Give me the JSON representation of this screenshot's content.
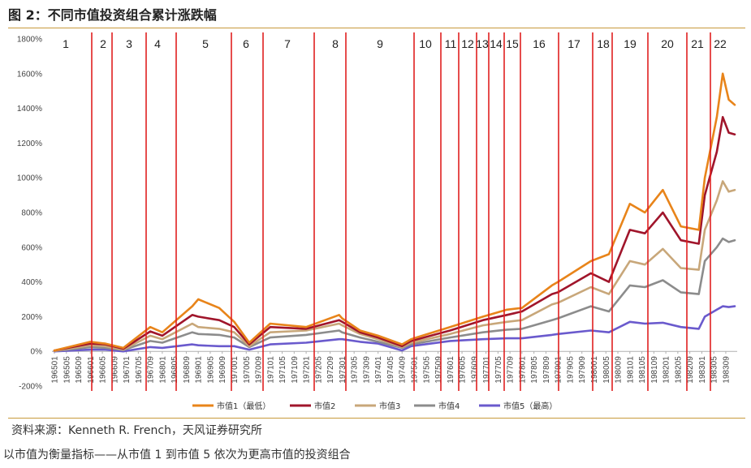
{
  "header": {
    "title": "图 2：不同市值投资组合累计涨跌幅"
  },
  "footer": {
    "source": "资料来源：Kenneth R. French，天风证券研究所",
    "note": "以市值为衡量指标——从市值 1 到市值 5 依次为更高市值的投资组合"
  },
  "colors": {
    "s1": "#e8841a",
    "s2": "#a0152b",
    "s3": "#c8a77a",
    "s4": "#8c8c8c",
    "s5": "#6a5acd",
    "divider": "#e02020",
    "axis": "#b0b0b0"
  },
  "chart_data": {
    "type": "line",
    "xlabel": "",
    "ylabel": "",
    "ylim": [
      -200,
      1800
    ],
    "yticks": [
      -200,
      0,
      200,
      400,
      600,
      800,
      1000,
      1200,
      1400,
      1600,
      1800
    ],
    "ytick_labels": [
      "-200%",
      "0%",
      "200%",
      "400%",
      "600%",
      "800%",
      "1000%",
      "1200%",
      "1400%",
      "1600%",
      "1800%"
    ],
    "xtick_labels": [
      "196501",
      "196505",
      "196509",
      "196601",
      "196605",
      "196609",
      "196701",
      "196705",
      "196709",
      "196801",
      "196805",
      "196809",
      "196901",
      "196905",
      "196909",
      "197001",
      "197005",
      "197009",
      "197101",
      "197105",
      "197109",
      "197201",
      "197205",
      "197209",
      "197301",
      "197305",
      "197309",
      "197401",
      "197405",
      "197409",
      "197501",
      "197505",
      "197509",
      "197601",
      "197605",
      "197609",
      "197701",
      "197705",
      "197709",
      "197801",
      "197805",
      "197809",
      "197901",
      "197905",
      "197909",
      "198001",
      "198005",
      "198009",
      "198101",
      "198105",
      "198109",
      "198201",
      "198205",
      "198209",
      "198301",
      "198305",
      "198309"
    ],
    "x": [
      "196501",
      "196601",
      "196606",
      "196612",
      "196709",
      "196801",
      "196811",
      "196901",
      "196908",
      "197001",
      "197006",
      "197101",
      "197201",
      "197212",
      "197301",
      "197307",
      "197401",
      "197409",
      "197412",
      "197601",
      "197612",
      "197708",
      "197801",
      "197811",
      "197901",
      "197912",
      "198006",
      "198101",
      "198106",
      "198112",
      "198206",
      "198212",
      "198302",
      "198306",
      "198308",
      "198310",
      "198312"
    ],
    "series": [
      {
        "name": "市值1（最低）",
        "values": [
          5,
          55,
          45,
          20,
          140,
          110,
          260,
          300,
          250,
          170,
          50,
          160,
          140,
          210,
          190,
          120,
          90,
          40,
          70,
          140,
          200,
          240,
          250,
          380,
          400,
          520,
          560,
          850,
          800,
          930,
          720,
          700,
          1000,
          1350,
          1600,
          1450,
          1420
        ]
      },
      {
        "name": "市值2",
        "values": [
          5,
          45,
          40,
          15,
          115,
          90,
          210,
          200,
          180,
          140,
          40,
          140,
          130,
          180,
          170,
          110,
          80,
          30,
          60,
          120,
          180,
          210,
          230,
          330,
          340,
          450,
          400,
          700,
          680,
          800,
          640,
          620,
          900,
          1150,
          1350,
          1260,
          1250
        ]
      },
      {
        "name": "市值3",
        "values": [
          3,
          35,
          30,
          10,
          90,
          70,
          160,
          140,
          130,
          110,
          30,
          110,
          120,
          160,
          150,
          100,
          70,
          25,
          50,
          100,
          150,
          170,
          180,
          270,
          280,
          370,
          330,
          520,
          500,
          590,
          480,
          470,
          700,
          870,
          980,
          920,
          930
        ]
      },
      {
        "name": "市值4",
        "values": [
          2,
          25,
          20,
          8,
          60,
          50,
          110,
          100,
          95,
          80,
          25,
          80,
          95,
          120,
          110,
          80,
          55,
          20,
          40,
          80,
          110,
          125,
          130,
          180,
          190,
          260,
          230,
          380,
          370,
          410,
          340,
          330,
          520,
          600,
          650,
          630,
          640
        ]
      },
      {
        "name": "市值5（最高）",
        "values": [
          0,
          10,
          10,
          0,
          25,
          20,
          40,
          35,
          30,
          30,
          10,
          40,
          50,
          70,
          70,
          55,
          45,
          5,
          30,
          60,
          70,
          75,
          75,
          95,
          100,
          120,
          110,
          170,
          160,
          165,
          140,
          130,
          200,
          240,
          260,
          255,
          260
        ]
      }
    ],
    "segment_labels": [
      "1",
      "2",
      "3",
      "4",
      "5",
      "6",
      "7",
      "8",
      "9",
      "10",
      "11",
      "12",
      "13",
      "14",
      "15",
      "16",
      "17",
      "18",
      "19",
      "20",
      "21",
      "22"
    ],
    "legend": "bottom"
  }
}
